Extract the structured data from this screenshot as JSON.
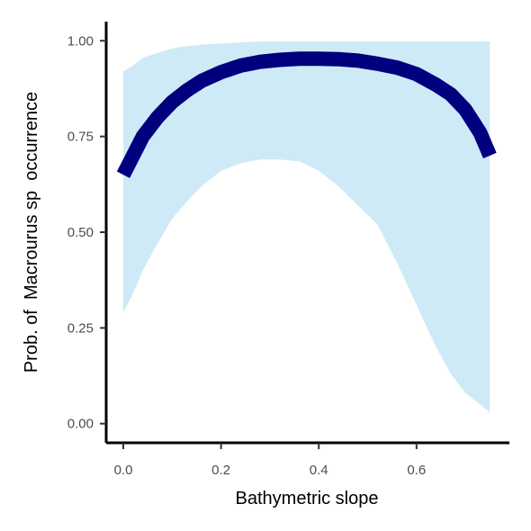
{
  "chart_data": {
    "type": "line",
    "title": "",
    "xlabel": "Bathymetric slope",
    "ylabel": "Prob. of  Macrourus sp  occurrence",
    "xlim": [
      -0.035,
      0.79
    ],
    "ylim": [
      -0.05,
      1.05
    ],
    "x_ticks": [
      0.0,
      0.2,
      0.4,
      0.6
    ],
    "x_tick_labels": [
      "0.0",
      "0.2",
      "0.4",
      "0.6"
    ],
    "y_ticks": [
      0.0,
      0.25,
      0.5,
      0.75,
      1.0
    ],
    "y_tick_labels": [
      "0.00",
      "0.25",
      "0.50",
      "0.75",
      "1.00"
    ],
    "grid": false,
    "legend": "none",
    "colors": {
      "line": "#00007f",
      "ribbon": "#cfeaf7",
      "axis": "#000000",
      "tick_text": "#4d4d4d"
    },
    "series": [
      {
        "x": [
          0.0,
          0.02,
          0.04,
          0.07,
          0.1,
          0.13,
          0.16,
          0.2,
          0.24,
          0.28,
          0.32,
          0.36,
          0.4,
          0.44,
          0.48,
          0.52,
          0.56,
          0.6,
          0.64,
          0.67,
          0.7,
          0.73,
          0.75
        ],
        "y": [
          0.65,
          0.7,
          0.75,
          0.8,
          0.84,
          0.87,
          0.895,
          0.918,
          0.935,
          0.945,
          0.95,
          0.953,
          0.953,
          0.952,
          0.948,
          0.94,
          0.93,
          0.913,
          0.885,
          0.86,
          0.82,
          0.76,
          0.7
        ]
      }
    ],
    "ribbon": {
      "x": [
        0.0,
        0.02,
        0.04,
        0.07,
        0.1,
        0.13,
        0.16,
        0.2,
        0.24,
        0.28,
        0.32,
        0.36,
        0.4,
        0.44,
        0.48,
        0.52,
        0.56,
        0.6,
        0.64,
        0.67,
        0.7,
        0.73,
        0.75
      ],
      "lower": [
        0.29,
        0.34,
        0.4,
        0.47,
        0.535,
        0.58,
        0.62,
        0.66,
        0.68,
        0.69,
        0.69,
        0.685,
        0.66,
        0.62,
        0.57,
        0.52,
        0.42,
        0.31,
        0.2,
        0.13,
        0.08,
        0.05,
        0.03
      ],
      "upper": [
        0.92,
        0.935,
        0.955,
        0.968,
        0.98,
        0.986,
        0.99,
        0.993,
        0.996,
        0.998,
        0.999,
        0.999,
        0.999,
        0.999,
        0.999,
        0.999,
        0.999,
        0.999,
        0.999,
        0.999,
        0.999,
        0.999,
        0.999
      ]
    }
  }
}
